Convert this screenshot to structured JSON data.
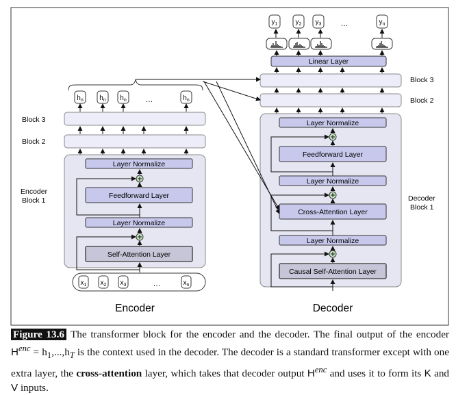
{
  "encoder": {
    "title": "Encoder",
    "side_label_line1": "Encoder",
    "side_label_line2": "Block 1",
    "block2": "Block 2",
    "block3": "Block 3",
    "layer_norm_top": "Layer Normalize",
    "feedforward": "Feedforward Layer",
    "layer_norm_mid": "Layer Normalize",
    "self_attention": "Self-Attention Layer",
    "inputs": [
      {
        "base": "x",
        "sub": "1"
      },
      {
        "base": "x",
        "sub": "2"
      },
      {
        "base": "x",
        "sub": "3"
      },
      {
        "base": "…",
        "sub": ""
      },
      {
        "base": "x",
        "sub": "n"
      }
    ],
    "outputs": [
      {
        "base": "h",
        "sub": "n"
      },
      {
        "base": "h",
        "sub": "n"
      },
      {
        "base": "h",
        "sub": "n"
      },
      {
        "base": "…",
        "sub": ""
      },
      {
        "base": "h",
        "sub": "n"
      }
    ]
  },
  "decoder": {
    "title": "Decoder",
    "side_label_line1": "Decoder",
    "side_label_line2": "Block 1",
    "block2": "Block 2",
    "block3": "Block 3",
    "linear": "Linear Layer",
    "layer_norm_1": "Layer Normalize",
    "feedforward": "Feedforward Layer",
    "layer_norm_2": "Layer Normalize",
    "cross_attention": "Cross-Attention Layer",
    "layer_norm_3": "Layer Normalize",
    "causal_attention": "Causal Self-Attention Layer",
    "outputs": [
      {
        "base": "y",
        "sub": "1"
      },
      {
        "base": "y",
        "sub": "2"
      },
      {
        "base": "y",
        "sub": "3"
      },
      {
        "base": "…",
        "sub": ""
      },
      {
        "base": "y",
        "sub": "n"
      }
    ]
  },
  "caption": {
    "label": "Figure 13.6",
    "t1": "The transformer block for the encoder and the decoder. The final output of the encoder ",
    "henc": "H",
    "sup": "enc",
    "t2": " = h",
    "t3": ",...,h",
    "t4": " is the context used in the decoder. The decoder is a standard transformer except with one extra layer, the ",
    "bold": "cross-attention",
    "t5": " layer, which takes that decoder output ",
    "t6": " and uses it to form its ",
    "k": "K",
    "and": " and ",
    "v": "V",
    "t7": " inputs.",
    "sub1": "1",
    "subT": "T"
  },
  "colors": {
    "panel": "#e6e6f2",
    "layer_box": "#c8c8ec",
    "attention_box": "#c6c6d8",
    "block_box": "#ecedf8",
    "plus_node": "#c8e8c4"
  }
}
